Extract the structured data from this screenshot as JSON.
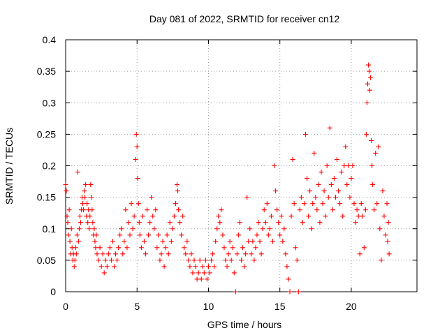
{
  "chart_data": {
    "type": "scatter",
    "title": "Day 081 of 2022, SRMTID for receiver cn12",
    "xlabel": "GPS time / hours",
    "ylabel": "SRMTID / TECUs",
    "xlim": [
      0,
      24.6
    ],
    "ylim": [
      0,
      0.4
    ],
    "x_ticks": [
      0,
      5,
      10,
      15,
      20
    ],
    "x_tick_labels": [
      "0",
      "5",
      "10",
      "15",
      "20"
    ],
    "y_ticks": [
      0,
      0.05,
      0.1,
      0.15,
      0.2,
      0.25,
      0.3,
      0.35,
      0.4
    ],
    "y_tick_labels": [
      "0",
      "0.05",
      "0.1",
      "0.15",
      "0.2",
      "0.25",
      "0.3",
      "0.35",
      "0.4"
    ],
    "grid": true,
    "marker": "+",
    "color": "#ff0000",
    "series": [
      {
        "name": "cn12",
        "points": [
          [
            0.0,
            0.17
          ],
          [
            0.05,
            0.16
          ],
          [
            0.1,
            0.12
          ],
          [
            0.15,
            0.11
          ],
          [
            0.2,
            0.09
          ],
          [
            0.25,
            0.13
          ],
          [
            0.3,
            0.08
          ],
          [
            0.35,
            0.06
          ],
          [
            0.4,
            0.1
          ],
          [
            0.45,
            0.07
          ],
          [
            0.5,
            0.05
          ],
          [
            0.55,
            0.06
          ],
          [
            0.6,
            0.04
          ],
          [
            0.65,
            0.05
          ],
          [
            0.7,
            0.07
          ],
          [
            0.75,
            0.06
          ],
          [
            0.8,
            0.09
          ],
          [
            0.85,
            0.19
          ],
          [
            0.9,
            0.08
          ],
          [
            0.95,
            0.1
          ],
          [
            1.0,
            0.12
          ],
          [
            1.05,
            0.11
          ],
          [
            1.1,
            0.13
          ],
          [
            1.15,
            0.15
          ],
          [
            1.2,
            0.14
          ],
          [
            1.25,
            0.13
          ],
          [
            1.3,
            0.16
          ],
          [
            1.35,
            0.15
          ],
          [
            1.4,
            0.17
          ],
          [
            1.45,
            0.12
          ],
          [
            1.5,
            0.14
          ],
          [
            1.55,
            0.11
          ],
          [
            1.6,
            0.13
          ],
          [
            1.65,
            0.1
          ],
          [
            1.7,
            0.12
          ],
          [
            1.75,
            0.17
          ],
          [
            1.8,
            0.15
          ],
          [
            1.85,
            0.13
          ],
          [
            1.9,
            0.11
          ],
          [
            1.95,
            0.09
          ],
          [
            2.0,
            0.1
          ],
          [
            2.05,
            0.08
          ],
          [
            2.1,
            0.07
          ],
          [
            2.15,
            0.09
          ],
          [
            2.2,
            0.06
          ],
          [
            2.3,
            0.05
          ],
          [
            2.4,
            0.07
          ],
          [
            2.5,
            0.04
          ],
          [
            2.6,
            0.06
          ],
          [
            2.7,
            0.03
          ],
          [
            2.8,
            0.05
          ],
          [
            2.9,
            0.04
          ],
          [
            3.0,
            0.06
          ],
          [
            3.1,
            0.07
          ],
          [
            3.2,
            0.05
          ],
          [
            3.3,
            0.08
          ],
          [
            3.4,
            0.04
          ],
          [
            3.5,
            0.06
          ],
          [
            3.6,
            0.05
          ],
          [
            3.7,
            0.07
          ],
          [
            3.8,
            0.09
          ],
          [
            3.9,
            0.1
          ],
          [
            4.0,
            0.06
          ],
          [
            4.1,
            0.08
          ],
          [
            4.2,
            0.13
          ],
          [
            4.3,
            0.07
          ],
          [
            4.4,
            0.11
          ],
          [
            4.5,
            0.09
          ],
          [
            4.6,
            0.14
          ],
          [
            4.7,
            0.1
          ],
          [
            4.8,
            0.12
          ],
          [
            4.9,
            0.21
          ],
          [
            4.95,
            0.25
          ],
          [
            5.0,
            0.23
          ],
          [
            5.05,
            0.18
          ],
          [
            5.1,
            0.14
          ],
          [
            5.15,
            0.11
          ],
          [
            5.2,
            0.09
          ],
          [
            5.3,
            0.07
          ],
          [
            5.4,
            0.12
          ],
          [
            5.5,
            0.08
          ],
          [
            5.6,
            0.06
          ],
          [
            5.7,
            0.13
          ],
          [
            5.8,
            0.09
          ],
          [
            5.9,
            0.11
          ],
          [
            6.0,
            0.15
          ],
          [
            6.1,
            0.12
          ],
          [
            6.2,
            0.1
          ],
          [
            6.3,
            0.13
          ],
          [
            6.4,
            0.07
          ],
          [
            6.5,
            0.09
          ],
          [
            6.6,
            0.05
          ],
          [
            6.7,
            0.06
          ],
          [
            6.8,
            0.08
          ],
          [
            6.9,
            0.04
          ],
          [
            7.0,
            0.07
          ],
          [
            7.1,
            0.09
          ],
          [
            7.2,
            0.06
          ],
          [
            7.3,
            0.11
          ],
          [
            7.4,
            0.08
          ],
          [
            7.5,
            0.1
          ],
          [
            7.6,
            0.12
          ],
          [
            7.7,
            0.14
          ],
          [
            7.8,
            0.17
          ],
          [
            7.85,
            0.16
          ],
          [
            7.9,
            0.13
          ],
          [
            8.0,
            0.11
          ],
          [
            8.1,
            0.09
          ],
          [
            8.2,
            0.12
          ],
          [
            8.3,
            0.07
          ],
          [
            8.4,
            0.06
          ],
          [
            8.5,
            0.08
          ],
          [
            8.6,
            0.05
          ],
          [
            8.7,
            0.04
          ],
          [
            8.8,
            0.06
          ],
          [
            8.9,
            0.03
          ],
          [
            9.0,
            0.05
          ],
          [
            9.1,
            0.04
          ],
          [
            9.2,
            0.02
          ],
          [
            9.3,
            0.03
          ],
          [
            9.4,
            0.05
          ],
          [
            9.5,
            0.02
          ],
          [
            9.6,
            0.04
          ],
          [
            9.7,
            0.03
          ],
          [
            9.8,
            0.05
          ],
          [
            9.9,
            0.02
          ],
          [
            10.0,
            0.04
          ],
          [
            10.1,
            0.03
          ],
          [
            10.2,
            0.05
          ],
          [
            10.3,
            0.06
          ],
          [
            10.4,
            0.04
          ],
          [
            10.5,
            0.08
          ],
          [
            10.6,
            0.1
          ],
          [
            10.7,
            0.12
          ],
          [
            10.8,
            0.11
          ],
          [
            10.9,
            0.13
          ],
          [
            11.0,
            0.09
          ],
          [
            11.1,
            0.07
          ],
          [
            11.2,
            0.05
          ],
          [
            11.3,
            0.04
          ],
          [
            11.4,
            0.06
          ],
          [
            11.5,
            0.08
          ],
          [
            11.6,
            0.05
          ],
          [
            11.7,
            0.07
          ],
          [
            11.8,
            0.03
          ],
          [
            11.9,
            0.0
          ],
          [
            12.0,
            0.06
          ],
          [
            12.1,
            0.09
          ],
          [
            12.2,
            0.11
          ],
          [
            12.3,
            0.05
          ],
          [
            12.4,
            0.07
          ],
          [
            12.5,
            0.04
          ],
          [
            12.6,
            0.06
          ],
          [
            12.7,
            0.15
          ],
          [
            12.8,
            0.08
          ],
          [
            12.9,
            0.1
          ],
          [
            13.0,
            0.06
          ],
          [
            13.1,
            0.08
          ],
          [
            13.2,
            0.05
          ],
          [
            13.3,
            0.07
          ],
          [
            13.4,
            0.09
          ],
          [
            13.5,
            0.11
          ],
          [
            13.6,
            0.08
          ],
          [
            13.7,
            0.06
          ],
          [
            13.8,
            0.1
          ],
          [
            13.9,
            0.13
          ],
          [
            14.0,
            0.11
          ],
          [
            14.1,
            0.14
          ],
          [
            14.2,
            0.09
          ],
          [
            14.3,
            0.1
          ],
          [
            14.4,
            0.12
          ],
          [
            14.5,
            0.08
          ],
          [
            14.6,
            0.2
          ],
          [
            14.7,
            0.16
          ],
          [
            14.8,
            0.13
          ],
          [
            14.9,
            0.11
          ],
          [
            15.0,
            0.09
          ],
          [
            15.1,
            0.12
          ],
          [
            15.2,
            0.08
          ],
          [
            15.3,
            0.1
          ],
          [
            15.4,
            0.06
          ],
          [
            15.5,
            0.04
          ],
          [
            15.6,
            0.02
          ],
          [
            15.7,
            0.0
          ],
          [
            15.8,
            0.12
          ],
          [
            15.9,
            0.21
          ],
          [
            16.0,
            0.14
          ],
          [
            16.1,
            0.07
          ],
          [
            16.2,
            0.05
          ],
          [
            16.3,
            0.0
          ],
          [
            16.4,
            0.13
          ],
          [
            16.5,
            0.15
          ],
          [
            16.6,
            0.11
          ],
          [
            16.7,
            0.14
          ],
          [
            16.8,
            0.25
          ],
          [
            16.9,
            0.18
          ],
          [
            17.0,
            0.12
          ],
          [
            17.1,
            0.16
          ],
          [
            17.2,
            0.1
          ],
          [
            17.3,
            0.14
          ],
          [
            17.4,
            0.22
          ],
          [
            17.5,
            0.15
          ],
          [
            17.6,
            0.13
          ],
          [
            17.7,
            0.17
          ],
          [
            17.8,
            0.11
          ],
          [
            17.9,
            0.19
          ],
          [
            18.0,
            0.14
          ],
          [
            18.1,
            0.16
          ],
          [
            18.2,
            0.12
          ],
          [
            18.3,
            0.2
          ],
          [
            18.4,
            0.15
          ],
          [
            18.5,
            0.26
          ],
          [
            18.6,
            0.17
          ],
          [
            18.7,
            0.13
          ],
          [
            18.8,
            0.18
          ],
          [
            18.9,
            0.15
          ],
          [
            19.0,
            0.21
          ],
          [
            19.1,
            0.16
          ],
          [
            19.2,
            0.14
          ],
          [
            19.3,
            0.19
          ],
          [
            19.4,
            0.12
          ],
          [
            19.5,
            0.2
          ],
          [
            19.6,
            0.23
          ],
          [
            19.7,
            0.17
          ],
          [
            19.8,
            0.2
          ],
          [
            19.9,
            0.15
          ],
          [
            20.0,
            0.18
          ],
          [
            20.1,
            0.2
          ],
          [
            20.2,
            0.14
          ],
          [
            20.3,
            0.11
          ],
          [
            20.4,
            0.13
          ],
          [
            20.5,
            0.12
          ],
          [
            20.6,
            0.06
          ],
          [
            20.7,
            0.14
          ],
          [
            20.8,
            0.12
          ],
          [
            20.9,
            0.07
          ],
          [
            21.0,
            0.13
          ],
          [
            21.05,
            0.25
          ],
          [
            21.1,
            0.3
          ],
          [
            21.15,
            0.33
          ],
          [
            21.2,
            0.36
          ],
          [
            21.25,
            0.35
          ],
          [
            21.3,
            0.32
          ],
          [
            21.35,
            0.34
          ],
          [
            21.4,
            0.24
          ],
          [
            21.45,
            0.2
          ],
          [
            21.5,
            0.17
          ],
          [
            21.6,
            0.13
          ],
          [
            21.7,
            0.22
          ],
          [
            21.8,
            0.14
          ],
          [
            21.9,
            0.23
          ],
          [
            22.0,
            0.1
          ],
          [
            22.1,
            0.05
          ],
          [
            22.2,
            0.16
          ],
          [
            22.3,
            0.12
          ],
          [
            22.4,
            0.09
          ],
          [
            22.5,
            0.14
          ],
          [
            22.55,
            0.08
          ],
          [
            22.6,
            0.11
          ],
          [
            22.65,
            0.06
          ]
        ]
      }
    ]
  }
}
